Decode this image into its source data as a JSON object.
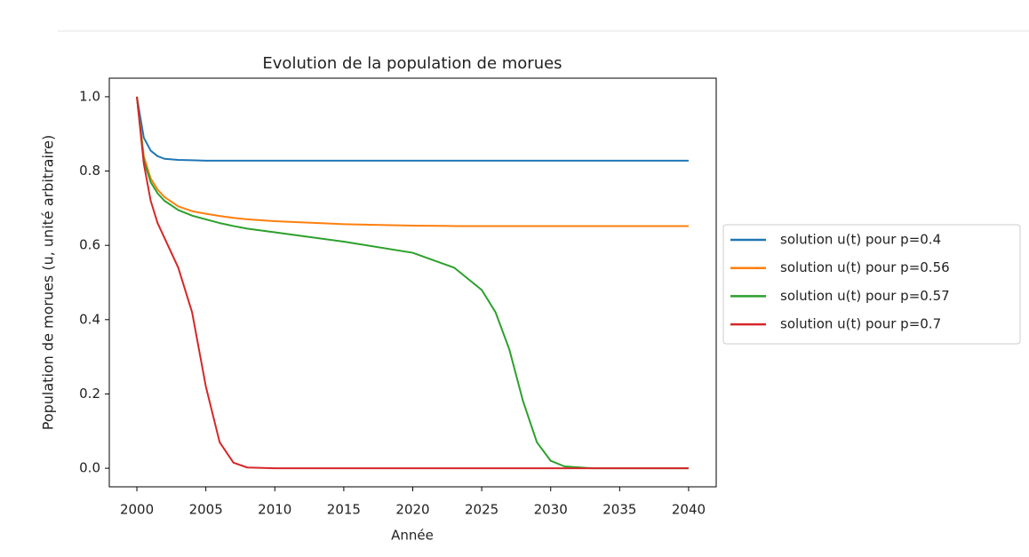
{
  "chart_data": {
    "type": "line",
    "title": "Evolution de la population de morues",
    "xlabel": "Année",
    "ylabel": "Population de morues (u, unité arbitraire)",
    "x": [
      2000,
      2000.5,
      2001,
      2001.5,
      2002,
      2003,
      2004,
      2005,
      2006,
      2007,
      2008,
      2010,
      2015,
      2020,
      2023,
      2025,
      2026,
      2027,
      2028,
      2029,
      2030,
      2031,
      2033,
      2040
    ],
    "series": [
      {
        "name": "solution u(t) pour p=0.4",
        "color": "#1f77b4",
        "values": [
          1.0,
          0.89,
          0.855,
          0.84,
          0.833,
          0.83,
          0.829,
          0.828,
          0.828,
          0.828,
          0.828,
          0.828,
          0.828,
          0.828,
          0.828,
          0.828,
          0.828,
          0.828,
          0.828,
          0.828,
          0.828,
          0.828,
          0.828,
          0.828
        ]
      },
      {
        "name": "solution u(t) pour p=0.56",
        "color": "#ff7f0e",
        "values": [
          1.0,
          0.84,
          0.78,
          0.75,
          0.73,
          0.705,
          0.692,
          0.685,
          0.679,
          0.674,
          0.67,
          0.665,
          0.657,
          0.653,
          0.652,
          0.652,
          0.652,
          0.652,
          0.652,
          0.652,
          0.652,
          0.652,
          0.652,
          0.652
        ]
      },
      {
        "name": "solution u(t) pour p=0.57",
        "color": "#2ca02c",
        "values": [
          1.0,
          0.83,
          0.77,
          0.74,
          0.72,
          0.695,
          0.68,
          0.67,
          0.66,
          0.652,
          0.645,
          0.635,
          0.61,
          0.58,
          0.54,
          0.48,
          0.42,
          0.32,
          0.18,
          0.07,
          0.02,
          0.005,
          0.0,
          0.0
        ]
      },
      {
        "name": "solution u(t) pour p=0.7",
        "color": "#d62728",
        "values": [
          1.0,
          0.82,
          0.72,
          0.66,
          0.62,
          0.54,
          0.42,
          0.22,
          0.07,
          0.015,
          0.002,
          0.0,
          0.0,
          0.0,
          0.0,
          0.0,
          0.0,
          0.0,
          0.0,
          0.0,
          0.0,
          0.0,
          0.0,
          0.0
        ]
      }
    ],
    "xlim": [
      1998,
      2042
    ],
    "xticks": [
      2000,
      2005,
      2010,
      2015,
      2020,
      2025,
      2030,
      2035,
      2040
    ],
    "ylim": [
      -0.05,
      1.05
    ],
    "yticks": [
      {
        "value": 0,
        "label": "0.0"
      },
      0.2,
      0.4,
      0.6,
      0.8,
      {
        "value": 1,
        "label": "1.0"
      }
    ]
  }
}
